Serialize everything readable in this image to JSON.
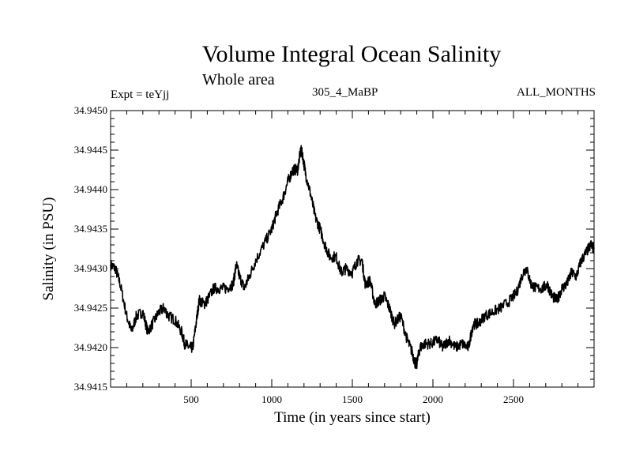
{
  "chart_data": {
    "type": "line",
    "title": "Volume Integral Ocean Salinity",
    "subtitle": "Whole area",
    "left_label": "Expt = teYjj",
    "center_label": "305_4_MaBP",
    "right_label": "ALL_MONTHS",
    "xlabel": "Time (in years since start)",
    "ylabel": "Salinity (in PSU)",
    "xlim": [
      0,
      3000
    ],
    "ylim": [
      34.9415,
      34.945
    ],
    "x_ticks": [
      500,
      1000,
      1500,
      2000,
      2500
    ],
    "x_tick_labels": [
      "500",
      "1000",
      "1500",
      "2000",
      "2500"
    ],
    "y_ticks": [
      34.9415,
      34.942,
      34.9425,
      34.943,
      34.9435,
      34.944,
      34.9445,
      34.945
    ],
    "y_tick_labels": [
      "34.9415",
      "34.9420",
      "34.9425",
      "34.9430",
      "34.9435",
      "34.9440",
      "34.9445",
      "34.9450"
    ],
    "grid": false,
    "series": [
      {
        "name": "Salinity",
        "x": [
          0,
          30,
          60,
          100,
          130,
          160,
          200,
          230,
          260,
          300,
          330,
          360,
          400,
          440,
          460,
          490,
          510,
          530,
          550,
          580,
          600,
          640,
          680,
          720,
          760,
          780,
          800,
          830,
          860,
          900,
          950,
          1000,
          1030,
          1070,
          1100,
          1130,
          1160,
          1180,
          1190,
          1210,
          1240,
          1270,
          1300,
          1330,
          1360,
          1400,
          1430,
          1460,
          1500,
          1530,
          1560,
          1580,
          1610,
          1640,
          1670,
          1700,
          1730,
          1760,
          1800,
          1840,
          1870,
          1890,
          1900,
          1920,
          1950,
          1990,
          2030,
          2060,
          2100,
          2140,
          2180,
          2220,
          2250,
          2280,
          2320,
          2370,
          2420,
          2480,
          2520,
          2560,
          2580,
          2610,
          2640,
          2680,
          2710,
          2740,
          2770,
          2800,
          2830,
          2860,
          2890,
          2920,
          2950,
          2980,
          3000
        ],
        "y": [
          34.94305,
          34.943,
          34.9428,
          34.9424,
          34.9422,
          34.9424,
          34.94245,
          34.9422,
          34.9423,
          34.94245,
          34.9425,
          34.9424,
          34.94235,
          34.9422,
          34.94205,
          34.942,
          34.942,
          34.9423,
          34.9426,
          34.94255,
          34.9426,
          34.94275,
          34.94275,
          34.94275,
          34.9428,
          34.94305,
          34.9429,
          34.94275,
          34.9429,
          34.9431,
          34.9433,
          34.9435,
          34.9437,
          34.9439,
          34.9441,
          34.94425,
          34.94425,
          34.9445,
          34.94445,
          34.9442,
          34.94395,
          34.94365,
          34.9435,
          34.9433,
          34.94315,
          34.94315,
          34.94295,
          34.943,
          34.94295,
          34.9431,
          34.9431,
          34.9428,
          34.94285,
          34.94255,
          34.9426,
          34.94265,
          34.9425,
          34.9423,
          34.9424,
          34.9421,
          34.94195,
          34.9418,
          34.9418,
          34.942,
          34.94205,
          34.94205,
          34.9421,
          34.942,
          34.9421,
          34.942,
          34.94205,
          34.942,
          34.9423,
          34.9423,
          34.9424,
          34.94245,
          34.9425,
          34.9426,
          34.9427,
          34.94295,
          34.943,
          34.9428,
          34.94275,
          34.94275,
          34.9428,
          34.94265,
          34.9426,
          34.94275,
          34.9428,
          34.94295,
          34.9429,
          34.9431,
          34.9432,
          34.9433,
          34.94325
        ]
      }
    ]
  }
}
